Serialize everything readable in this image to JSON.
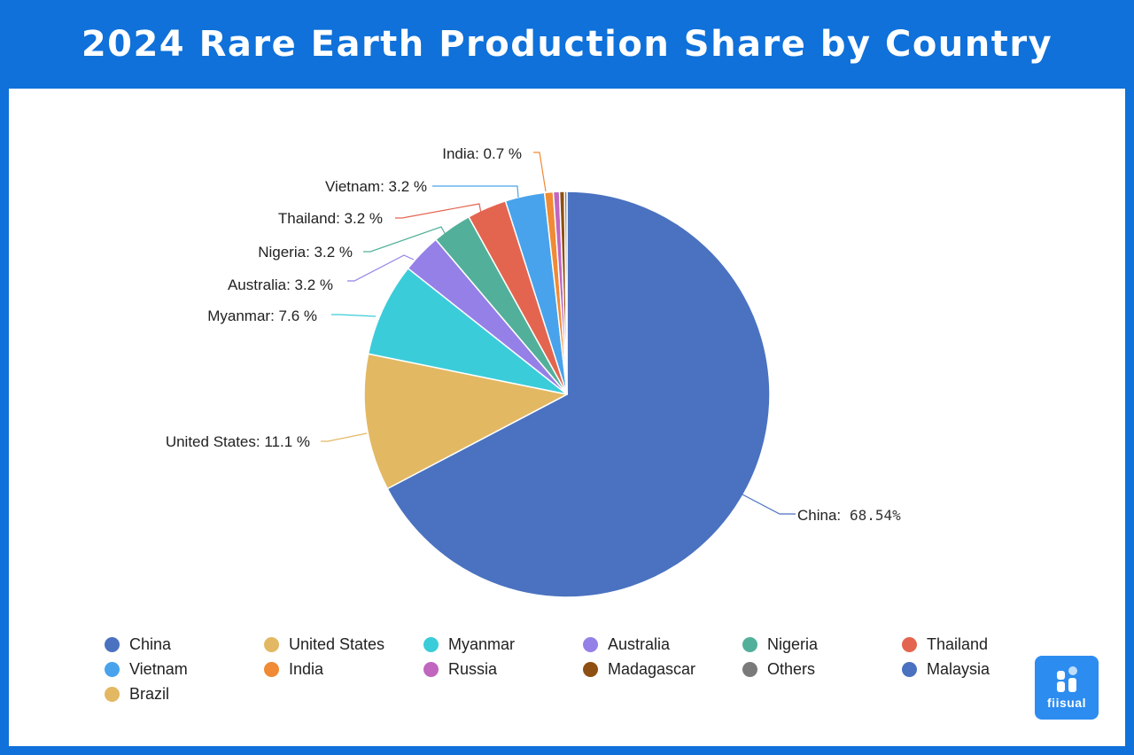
{
  "header": {
    "title": "2024 Rare Earth Production Share by Country"
  },
  "logo": {
    "text": "fiisual"
  },
  "chart_data": {
    "type": "pie",
    "title": "2024 Rare Earth Production Share by Country",
    "unit": "%",
    "start_angle": "12 o'clock, clockwise",
    "legend_position": "bottom",
    "series": [
      {
        "name": "China",
        "value": 68.54,
        "label": "China: 68.54%",
        "color": "#4a72c0"
      },
      {
        "name": "United States",
        "value": 11.1,
        "label": "United States: 11.1 %",
        "color": "#e3b863"
      },
      {
        "name": "Myanmar",
        "value": 7.6,
        "label": "Myanmar: 7.6 %",
        "color": "#3bccd9"
      },
      {
        "name": "Australia",
        "value": 3.2,
        "label": "Australia: 3.2 %",
        "color": "#9580e8"
      },
      {
        "name": "Nigeria",
        "value": 3.2,
        "label": "Nigeria: 3.2 %",
        "color": "#52b09a"
      },
      {
        "name": "Thailand",
        "value": 3.2,
        "label": "Thailand: 3.2 %",
        "color": "#e4654f"
      },
      {
        "name": "Vietnam",
        "value": 3.2,
        "label": "Vietnam: 3.2 %",
        "color": "#48a3ec"
      },
      {
        "name": "India",
        "value": 0.7,
        "label": "India: 0.7 %",
        "color": "#f08a34"
      },
      {
        "name": "Russia",
        "value": 0.5,
        "label": "",
        "color": "#c066be"
      },
      {
        "name": "Madagascar",
        "value": 0.4,
        "label": "",
        "color": "#8e4f12"
      },
      {
        "name": "Others",
        "value": 0.2,
        "label": "",
        "color": "#7a7a7a"
      },
      {
        "name": "Malaysia",
        "value": 0.0,
        "label": "",
        "color": "#4a72c0"
      },
      {
        "name": "Brazil",
        "value": 0.0,
        "label": "",
        "color": "#e3b863"
      }
    ]
  },
  "labels": {
    "china_name": "China:",
    "china_value": "68.54%",
    "united_states": "United States: 11.1 %",
    "myanmar": "Myanmar: 7.6 %",
    "australia": "Australia: 3.2 %",
    "nigeria": "Nigeria: 3.2 %",
    "thailand": "Thailand: 3.2 %",
    "vietnam": "Vietnam: 3.2 %",
    "india": "India: 0.7 %"
  },
  "legend": [
    {
      "label": "China",
      "color": "#4a72c0"
    },
    {
      "label": "United States",
      "color": "#e3b863"
    },
    {
      "label": "Myanmar",
      "color": "#3bccd9"
    },
    {
      "label": "Australia",
      "color": "#9580e8"
    },
    {
      "label": "Nigeria",
      "color": "#52b09a"
    },
    {
      "label": "Thailand",
      "color": "#e4654f"
    },
    {
      "label": "Vietnam",
      "color": "#48a3ec"
    },
    {
      "label": "India",
      "color": "#f08a34"
    },
    {
      "label": "Russia",
      "color": "#c066be"
    },
    {
      "label": "Madagascar",
      "color": "#8e4f12"
    },
    {
      "label": "Others",
      "color": "#7a7a7a"
    },
    {
      "label": "Malaysia",
      "color": "#4a72c0"
    },
    {
      "label": "Brazil",
      "color": "#e3b863"
    }
  ]
}
